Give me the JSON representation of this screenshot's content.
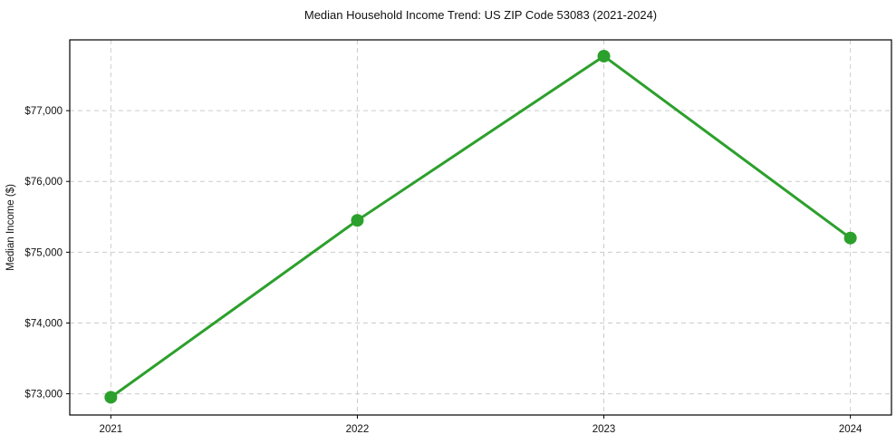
{
  "page": {
    "background": "#ffffff"
  },
  "chart_data": {
    "type": "line",
    "title": "Median Household Income Trend: US ZIP Code 53083 (2021-2024)",
    "xlabel": "",
    "ylabel": "Median Income ($)",
    "categories": [
      "2021",
      "2022",
      "2023",
      "2024"
    ],
    "series": [
      {
        "name": "Median Household Income",
        "values": [
          72950,
          75450,
          77770,
          75200
        ],
        "color": "#2ca02c",
        "marker": "circle"
      }
    ],
    "ylim": [
      72700,
      78000
    ],
    "yticks": [
      73000,
      74000,
      75000,
      76000,
      77000
    ],
    "ytick_labels": [
      "$73,000",
      "$74,000",
      "$75,000",
      "$76,000",
      "$77,000"
    ],
    "x_margin_fraction": 0.05,
    "grid": true,
    "grid_style": "dashed",
    "grid_color": "#cccccc",
    "spine_color": "#000000",
    "legend": "none"
  }
}
